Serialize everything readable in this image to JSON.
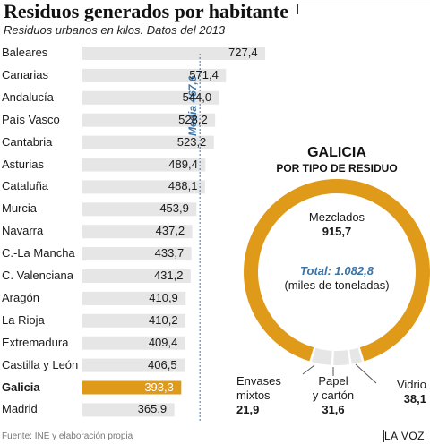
{
  "title": "Residuos generados por habitante",
  "subtitle": "Residuos urbanos en kilos. Datos del 2013",
  "chart_data": [
    {
      "type": "bar",
      "orientation": "horizontal",
      "title": "Residuos generados por habitante",
      "subtitle": "Residuos urbanos en kilos. Datos del 2013",
      "categories": [
        "Baleares",
        "Canarias",
        "Andalucía",
        "País Vasco",
        "Cantabria",
        "Asturias",
        "Cataluña",
        "Murcia",
        "Navarra",
        "C.-La Mancha",
        "C. Valenciana",
        "Aragón",
        "La Rioja",
        "Extremadura",
        "Castilla y León",
        "Galicia",
        "Madrid"
      ],
      "values": [
        727.4,
        571.4,
        544.0,
        528.2,
        523.2,
        489.4,
        488.1,
        453.9,
        437.2,
        433.7,
        431.2,
        410.9,
        410.2,
        409.4,
        406.5,
        393.3,
        365.9
      ],
      "value_labels": [
        "727,4",
        "571,4",
        "544,0",
        "528,2",
        "523,2",
        "489,4",
        "488,1",
        "453,9",
        "437,2",
        "433,7",
        "431,2",
        "410,9",
        "410,2",
        "409,4",
        "406,5",
        "393,3",
        "365,9"
      ],
      "highlight": "Galicia",
      "reference_line": {
        "label": "Media 467,6",
        "value": 467.6
      },
      "colors": {
        "bar": "#e6e6e6",
        "highlight": "#e09a1a",
        "reference": "#3b74a8"
      }
    },
    {
      "type": "pie",
      "style": "donut",
      "title": "GALICIA",
      "subtitle": "POR TIPO DE RESIDUO",
      "categories": [
        "Mezclados",
        "Envases mixtos",
        "Papel y cartón",
        "Vidrio"
      ],
      "values": [
        915.7,
        21.9,
        31.6,
        38.1
      ],
      "value_labels": [
        "915,7",
        "21,9",
        "31,6",
        "38,1"
      ],
      "total": 1082.8,
      "total_label": "Total: 1.082,8",
      "unit": "(miles de toneladas)",
      "colors": {
        "main": "#e09a1a",
        "minor": "#e6e6e6"
      }
    }
  ],
  "donut_labels": {
    "mezclados": {
      "name": "Mezclados",
      "value": "915,7"
    },
    "envases": {
      "name_line1": "Envases",
      "name_line2": "mixtos",
      "value": "21,9"
    },
    "papel": {
      "name_line1": "Papel",
      "name_line2": "y cartón",
      "value": "31,6"
    },
    "vidrio": {
      "name": "Vidrio",
      "value": "38,1"
    }
  },
  "source": "Fuente: INE y elaboración propia",
  "brand": "LA VOZ"
}
